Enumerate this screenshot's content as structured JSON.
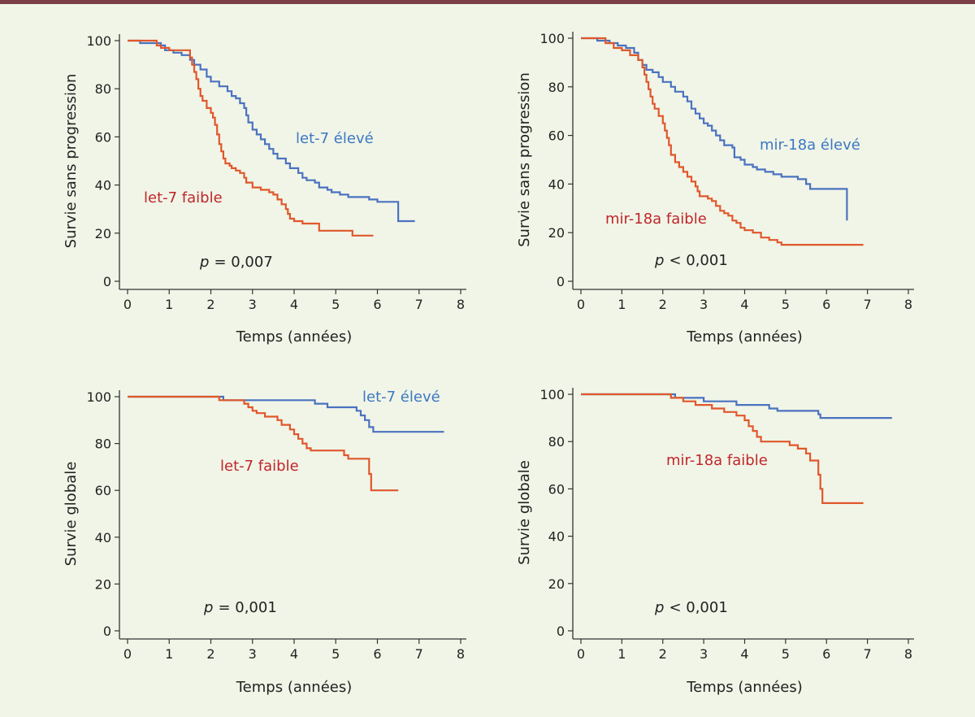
{
  "colors": {
    "top_bar": "#7b3f48",
    "background": "#f1f5e7",
    "axis": "#333333",
    "high": "#4a72c0",
    "low": "#e0572c",
    "high_text": "#3c78c3",
    "low_text": "#c0262a"
  },
  "chart_data": [
    {
      "type": "line",
      "name": "pfs-let7",
      "ylabel": "Survie sans progression",
      "xlabel": "Temps (années)",
      "xlim": [
        0,
        8
      ],
      "ylim": [
        0,
        100
      ],
      "xticks": [
        "0",
        "1",
        "2",
        "3",
        "4",
        "5",
        "6",
        "7",
        "8"
      ],
      "yticks": [
        "0",
        "20",
        "40",
        "60",
        "80",
        "100"
      ],
      "p_symbol": "p",
      "p_text": "= 0,007",
      "series": [
        {
          "name": "let-7 élevé",
          "role": "high",
          "points": [
            [
              0,
              100
            ],
            [
              0.2,
              100
            ],
            [
              0.3,
              99
            ],
            [
              0.8,
              98
            ],
            [
              0.9,
              96
            ],
            [
              1.1,
              95
            ],
            [
              1.3,
              94
            ],
            [
              1.5,
              92
            ],
            [
              1.6,
              90
            ],
            [
              1.75,
              88
            ],
            [
              1.9,
              85
            ],
            [
              2.0,
              83
            ],
            [
              2.2,
              81
            ],
            [
              2.4,
              79
            ],
            [
              2.5,
              77
            ],
            [
              2.6,
              76
            ],
            [
              2.7,
              74
            ],
            [
              2.8,
              72
            ],
            [
              2.85,
              69
            ],
            [
              2.9,
              66
            ],
            [
              3.0,
              63
            ],
            [
              3.1,
              61
            ],
            [
              3.2,
              59
            ],
            [
              3.3,
              57
            ],
            [
              3.4,
              55
            ],
            [
              3.5,
              53
            ],
            [
              3.6,
              51
            ],
            [
              3.8,
              49
            ],
            [
              3.9,
              47
            ],
            [
              4.1,
              45
            ],
            [
              4.2,
              43
            ],
            [
              4.3,
              42
            ],
            [
              4.5,
              41
            ],
            [
              4.6,
              39
            ],
            [
              4.8,
              38
            ],
            [
              4.9,
              37
            ],
            [
              5.1,
              36
            ],
            [
              5.3,
              35
            ],
            [
              5.6,
              35
            ],
            [
              5.8,
              34
            ],
            [
              6.0,
              33
            ],
            [
              6.5,
              33
            ],
            [
              6.5,
              25
            ],
            [
              6.9,
              25
            ]
          ]
        },
        {
          "name": "let-7 faible",
          "role": "low",
          "points": [
            [
              0,
              100
            ],
            [
              0.6,
              100
            ],
            [
              0.7,
              98
            ],
            [
              0.8,
              97
            ],
            [
              1.0,
              96
            ],
            [
              1.4,
              96
            ],
            [
              1.5,
              93
            ],
            [
              1.55,
              90
            ],
            [
              1.6,
              87
            ],
            [
              1.65,
              84
            ],
            [
              1.7,
              80
            ],
            [
              1.75,
              77
            ],
            [
              1.8,
              75
            ],
            [
              1.9,
              72
            ],
            [
              2.0,
              70
            ],
            [
              2.05,
              68
            ],
            [
              2.1,
              65
            ],
            [
              2.15,
              61
            ],
            [
              2.2,
              57
            ],
            [
              2.25,
              54
            ],
            [
              2.3,
              51
            ],
            [
              2.35,
              49
            ],
            [
              2.45,
              48
            ],
            [
              2.5,
              47
            ],
            [
              2.6,
              46
            ],
            [
              2.7,
              45
            ],
            [
              2.8,
              43
            ],
            [
              2.85,
              41
            ],
            [
              3.0,
              39
            ],
            [
              3.2,
              38
            ],
            [
              3.4,
              37
            ],
            [
              3.5,
              36
            ],
            [
              3.6,
              34
            ],
            [
              3.7,
              32
            ],
            [
              3.8,
              30
            ],
            [
              3.85,
              28
            ],
            [
              3.9,
              26
            ],
            [
              4.0,
              25
            ],
            [
              4.2,
              24
            ],
            [
              4.6,
              24
            ],
            [
              4.6,
              21
            ],
            [
              5.3,
              21
            ],
            [
              5.4,
              19
            ],
            [
              5.9,
              19
            ]
          ]
        }
      ]
    },
    {
      "type": "line",
      "name": "pfs-mir18a",
      "ylabel": "Survie sans progression",
      "xlabel": "Temps (années)",
      "xlim": [
        0,
        8
      ],
      "ylim": [
        0,
        100
      ],
      "xticks": [
        "0",
        "1",
        "2",
        "3",
        "4",
        "5",
        "6",
        "7",
        "8"
      ],
      "yticks": [
        "0",
        "20",
        "40",
        "60",
        "80",
        "100"
      ],
      "p_symbol": "p",
      "p_text": "< 0,001",
      "series": [
        {
          "name": "mir-18a élevé",
          "role": "high",
          "points": [
            [
              0,
              100
            ],
            [
              0.3,
              100
            ],
            [
              0.4,
              99
            ],
            [
              0.7,
              98
            ],
            [
              0.9,
              97
            ],
            [
              1.1,
              96
            ],
            [
              1.3,
              94
            ],
            [
              1.4,
              91
            ],
            [
              1.5,
              89
            ],
            [
              1.6,
              87
            ],
            [
              1.75,
              86
            ],
            [
              1.9,
              84
            ],
            [
              2.0,
              82
            ],
            [
              2.2,
              80
            ],
            [
              2.3,
              78
            ],
            [
              2.5,
              76
            ],
            [
              2.6,
              74
            ],
            [
              2.7,
              71
            ],
            [
              2.8,
              69
            ],
            [
              2.9,
              67
            ],
            [
              3.0,
              65
            ],
            [
              3.1,
              64
            ],
            [
              3.2,
              62
            ],
            [
              3.3,
              60
            ],
            [
              3.4,
              58
            ],
            [
              3.5,
              56
            ],
            [
              3.7,
              55
            ],
            [
              3.75,
              51
            ],
            [
              3.9,
              50
            ],
            [
              4.0,
              48
            ],
            [
              4.2,
              47
            ],
            [
              4.3,
              46
            ],
            [
              4.5,
              45
            ],
            [
              4.7,
              44
            ],
            [
              4.9,
              43
            ],
            [
              5.1,
              43
            ],
            [
              5.3,
              42
            ],
            [
              5.5,
              40
            ],
            [
              5.6,
              38
            ],
            [
              6.4,
              38
            ],
            [
              6.5,
              25
            ]
          ]
        },
        {
          "name": "mir-18a faible",
          "role": "low",
          "points": [
            [
              0,
              100
            ],
            [
              0.5,
              100
            ],
            [
              0.6,
              98
            ],
            [
              0.8,
              96
            ],
            [
              1.0,
              95
            ],
            [
              1.2,
              93
            ],
            [
              1.4,
              91
            ],
            [
              1.5,
              88
            ],
            [
              1.55,
              85
            ],
            [
              1.6,
              82
            ],
            [
              1.65,
              79
            ],
            [
              1.7,
              76
            ],
            [
              1.75,
              73
            ],
            [
              1.8,
              71
            ],
            [
              1.9,
              68
            ],
            [
              2.0,
              65
            ],
            [
              2.05,
              62
            ],
            [
              2.1,
              59
            ],
            [
              2.15,
              56
            ],
            [
              2.2,
              52
            ],
            [
              2.3,
              49
            ],
            [
              2.4,
              47
            ],
            [
              2.5,
              45
            ],
            [
              2.6,
              43
            ],
            [
              2.7,
              41
            ],
            [
              2.8,
              39
            ],
            [
              2.85,
              37
            ],
            [
              2.9,
              35
            ],
            [
              3.1,
              34
            ],
            [
              3.2,
              33
            ],
            [
              3.3,
              31
            ],
            [
              3.4,
              29
            ],
            [
              3.5,
              28
            ],
            [
              3.6,
              27
            ],
            [
              3.7,
              25
            ],
            [
              3.8,
              24
            ],
            [
              3.9,
              22
            ],
            [
              4.0,
              21
            ],
            [
              4.2,
              20
            ],
            [
              4.4,
              18
            ],
            [
              4.6,
              17
            ],
            [
              4.8,
              16
            ],
            [
              4.9,
              15
            ],
            [
              5.5,
              15
            ],
            [
              6.9,
              15
            ]
          ]
        }
      ]
    },
    {
      "type": "line",
      "name": "os-let7",
      "ylabel": "Survie globale",
      "xlabel": "Temps (années)",
      "xlim": [
        0,
        8
      ],
      "ylim": [
        0,
        100
      ],
      "xticks": [
        "0",
        "1",
        "2",
        "3",
        "4",
        "5",
        "6",
        "7",
        "8"
      ],
      "yticks": [
        "0",
        "20",
        "40",
        "60",
        "80",
        "100"
      ],
      "p_symbol": "p",
      "p_text": "= 0,001",
      "series": [
        {
          "name": "let-7 élevé",
          "role": "high",
          "points": [
            [
              0,
              100
            ],
            [
              2.3,
              100
            ],
            [
              2.3,
              98.5
            ],
            [
              4.4,
              98.5
            ],
            [
              4.5,
              97
            ],
            [
              4.8,
              95.5
            ],
            [
              5.4,
              95.5
            ],
            [
              5.5,
              94
            ],
            [
              5.6,
              92
            ],
            [
              5.7,
              90
            ],
            [
              5.8,
              87
            ],
            [
              5.9,
              85
            ],
            [
              7.6,
              85
            ]
          ]
        },
        {
          "name": "let-7 faible",
          "role": "low",
          "points": [
            [
              0,
              100
            ],
            [
              2.2,
              100
            ],
            [
              2.2,
              98.5
            ],
            [
              2.7,
              98.5
            ],
            [
              2.8,
              97
            ],
            [
              2.9,
              95.5
            ],
            [
              3.0,
              94
            ],
            [
              3.1,
              93
            ],
            [
              3.3,
              91.5
            ],
            [
              3.6,
              90
            ],
            [
              3.7,
              88
            ],
            [
              3.9,
              86
            ],
            [
              4.0,
              84
            ],
            [
              4.1,
              82
            ],
            [
              4.2,
              80
            ],
            [
              4.3,
              78
            ],
            [
              4.4,
              77
            ],
            [
              5.1,
              77
            ],
            [
              5.2,
              75
            ],
            [
              5.3,
              73.5
            ],
            [
              5.7,
              73.5
            ],
            [
              5.8,
              67
            ],
            [
              5.85,
              60
            ],
            [
              6.5,
              60
            ]
          ]
        }
      ]
    },
    {
      "type": "line",
      "name": "os-mir18a",
      "ylabel": "Survie globale",
      "xlabel": "Temps (années)",
      "xlim": [
        0,
        8
      ],
      "ylim": [
        0,
        100
      ],
      "xticks": [
        "0",
        "1",
        "2",
        "3",
        "4",
        "5",
        "6",
        "7",
        "8"
      ],
      "yticks": [
        "0",
        "20",
        "40",
        "60",
        "80",
        "100"
      ],
      "p_symbol": "p",
      "p_text": "< 0,001",
      "series": [
        {
          "name": "",
          "role": "high",
          "points": [
            [
              0,
              100
            ],
            [
              2.2,
              100
            ],
            [
              2.3,
              98.5
            ],
            [
              2.9,
              98.5
            ],
            [
              3.0,
              97
            ],
            [
              3.7,
              97
            ],
            [
              3.8,
              95.5
            ],
            [
              4.5,
              95.5
            ],
            [
              4.6,
              94
            ],
            [
              4.8,
              93
            ],
            [
              5.6,
              93
            ],
            [
              5.8,
              91.5
            ],
            [
              5.85,
              90
            ],
            [
              7.6,
              90
            ]
          ]
        },
        {
          "name": "mir-18a faible",
          "role": "low",
          "points": [
            [
              0,
              100
            ],
            [
              2.1,
              100
            ],
            [
              2.2,
              98.5
            ],
            [
              2.5,
              97
            ],
            [
              2.8,
              95.5
            ],
            [
              3.2,
              94
            ],
            [
              3.5,
              92.5
            ],
            [
              3.8,
              91
            ],
            [
              4.0,
              89
            ],
            [
              4.1,
              86.5
            ],
            [
              4.2,
              84.5
            ],
            [
              4.3,
              82
            ],
            [
              4.4,
              80
            ],
            [
              5.0,
              80
            ],
            [
              5.1,
              78.5
            ],
            [
              5.3,
              77
            ],
            [
              5.5,
              75
            ],
            [
              5.6,
              72
            ],
            [
              5.75,
              72
            ],
            [
              5.8,
              66
            ],
            [
              5.85,
              60
            ],
            [
              5.9,
              54
            ],
            [
              6.9,
              54
            ]
          ]
        }
      ]
    }
  ]
}
